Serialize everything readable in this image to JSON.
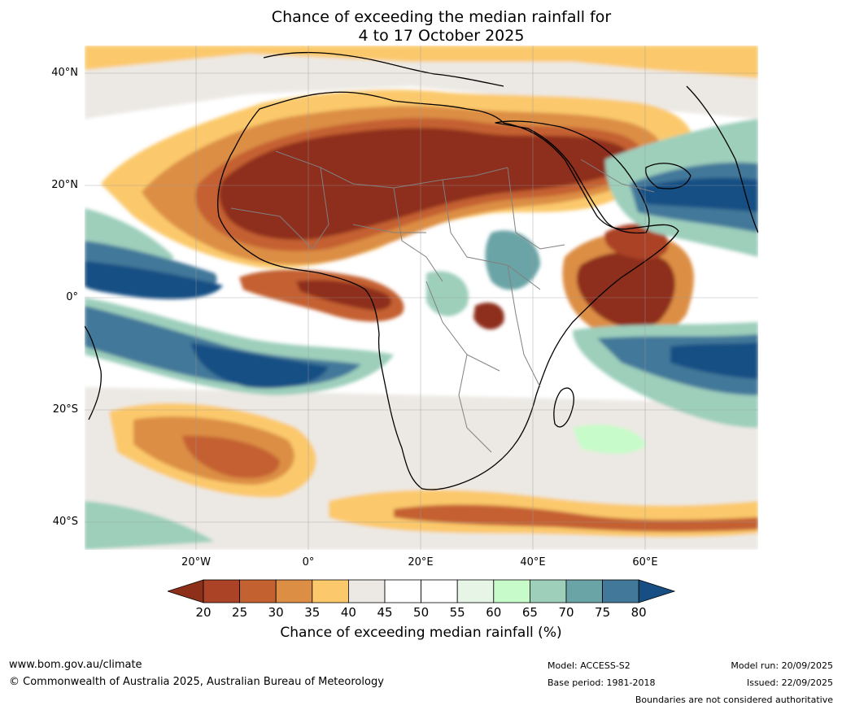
{
  "title": {
    "line1": "Chance of exceeding the median rainfall for",
    "line2": "4 to 17 October 2025"
  },
  "lat_labels": [
    "40°N",
    "20°N",
    "0°",
    "20°S",
    "40°S"
  ],
  "lon_labels": [
    "20°W",
    "0°",
    "20°E",
    "40°E",
    "60°E"
  ],
  "colorbar": {
    "ticks": [
      "20",
      "25",
      "30",
      "35",
      "40",
      "45",
      "50",
      "55",
      "60",
      "65",
      "70",
      "75",
      "80"
    ],
    "colors": [
      "#8e2f1a",
      "#ab4326",
      "#c46130",
      "#dc8e45",
      "#fbc96c",
      "#ece9e4",
      "#ffffff",
      "#ffffff",
      "#e7f5e7",
      "#c7fbc9",
      "#9dcfbb",
      "#6aa4a6",
      "#42789a",
      "#174f84"
    ],
    "label": "Chance of exceeding median rainfall (%)"
  },
  "footer": {
    "url": "www.bom.gov.au/climate",
    "copyright": "© Commonwealth of Australia 2025, Australian Bureau of Meteorology",
    "model": "Model: ACCESS-S2",
    "base_period": "Base period: 1981-2018",
    "model_run": "Model run: 20/09/2025",
    "issued": "Issued: 22/09/2025",
    "disclaimer": "Boundaries are not considered authoritative"
  }
}
